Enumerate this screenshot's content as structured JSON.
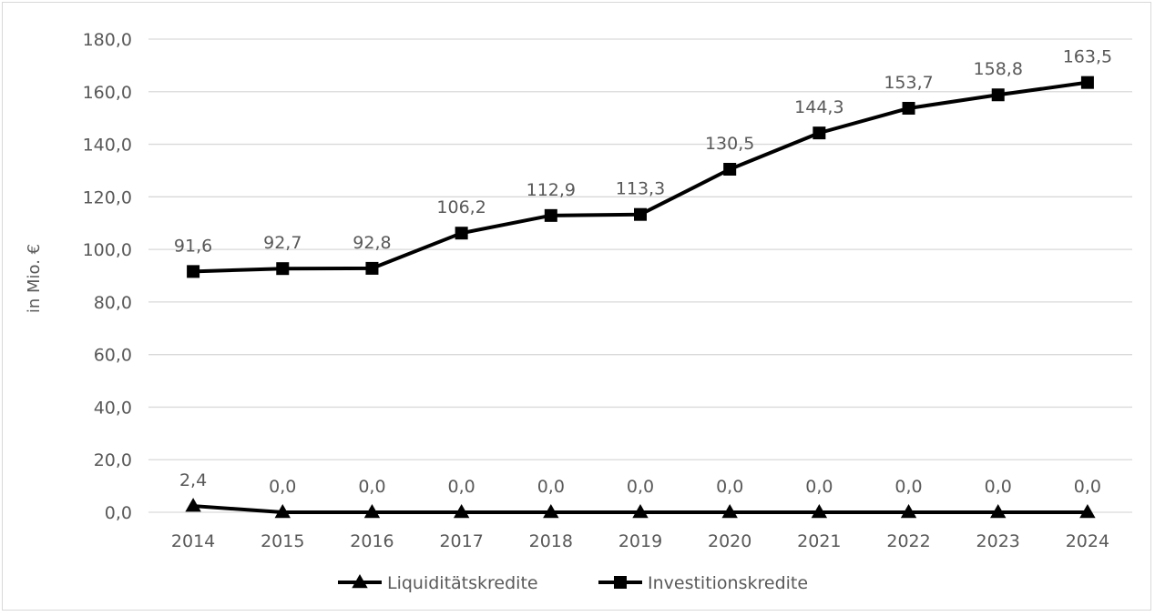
{
  "chart_data": {
    "type": "line",
    "title": "",
    "xlabel": "",
    "ylabel": "in Mio. €",
    "ylim": [
      0,
      180
    ],
    "yticks": [
      "0,0",
      "20,0",
      "40,0",
      "60,0",
      "80,0",
      "100,0",
      "120,0",
      "140,0",
      "160,0",
      "180,0"
    ],
    "grid": true,
    "legend_position": "bottom",
    "categories": [
      "2014",
      "2015",
      "2016",
      "2017",
      "2018",
      "2019",
      "2020",
      "2021",
      "2022",
      "2023",
      "2024"
    ],
    "series": [
      {
        "name": "Liquiditätskredite",
        "marker": "triangle",
        "color": "#000000",
        "values": [
          2.4,
          0.0,
          0.0,
          0.0,
          0.0,
          0.0,
          0.0,
          0.0,
          0.0,
          0.0,
          0.0
        ],
        "labels": [
          "2,4",
          "0,0",
          "0,0",
          "0,0",
          "0,0",
          "0,0",
          "0,0",
          "0,0",
          "0,0",
          "0,0",
          "0,0"
        ]
      },
      {
        "name": "Investitionskredite",
        "marker": "square",
        "color": "#000000",
        "values": [
          91.6,
          92.7,
          92.8,
          106.2,
          112.9,
          113.3,
          130.5,
          144.3,
          153.7,
          158.8,
          163.5
        ],
        "labels": [
          "91,6",
          "92,7",
          "92,8",
          "106,2",
          "112,9",
          "113,3",
          "130,5",
          "144,3",
          "153,7",
          "158,8",
          "163,5"
        ]
      }
    ],
    "colors": {
      "gridline": "#d9d9d9",
      "text": "#595959",
      "series": "#000000"
    }
  }
}
